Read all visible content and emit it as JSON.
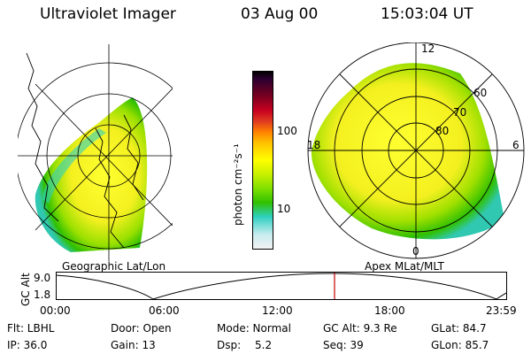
{
  "header": {
    "instrument": "Ultraviolet Imager",
    "date": "03 Aug 00",
    "time": "15:03:04 UT"
  },
  "left_panel": {
    "caption": "Geographic Lat/Lon"
  },
  "colorbar": {
    "unit_label": "photon cm⁻²s⁻¹",
    "tick_labels": [
      "100",
      "10"
    ],
    "colors": [
      "#000000",
      "#3a0020",
      "#8a0010",
      "#c80020",
      "#e03030",
      "#ff7a00",
      "#ffc000",
      "#ffff00",
      "#d8f000",
      "#88e000",
      "#30c000",
      "#2ed0c0",
      "#c8ecf0",
      "#e8e8e8"
    ]
  },
  "right_panel": {
    "caption": "Apex MLat/MLT",
    "latitude_labels": [
      "60",
      "70",
      "80"
    ],
    "mlt_labels": [
      "12",
      "18",
      "6",
      "0"
    ]
  },
  "timeline": {
    "y_axis_label": "GC Alt",
    "y_ticks": [
      "9.0",
      "1.8"
    ],
    "x_ticks": [
      "00:00",
      "06:00",
      "12:00",
      "18:00",
      "23:59"
    ],
    "marker_color": "#c00000"
  },
  "info": {
    "row1": {
      "flt": "Flt: LBHL",
      "door": "Door: Open",
      "mode": "Mode: Normal",
      "gc_alt": "GC Alt: 9.3 Re",
      "glat": "GLat: 84.7"
    },
    "row2": {
      "ip": "IP: 36.0",
      "gain": "Gain: 13",
      "dsp_label": "Dsp:",
      "dsp_value": "5.2",
      "seq": "Seq: 39",
      "glon": "GLon: 85.7"
    }
  }
}
